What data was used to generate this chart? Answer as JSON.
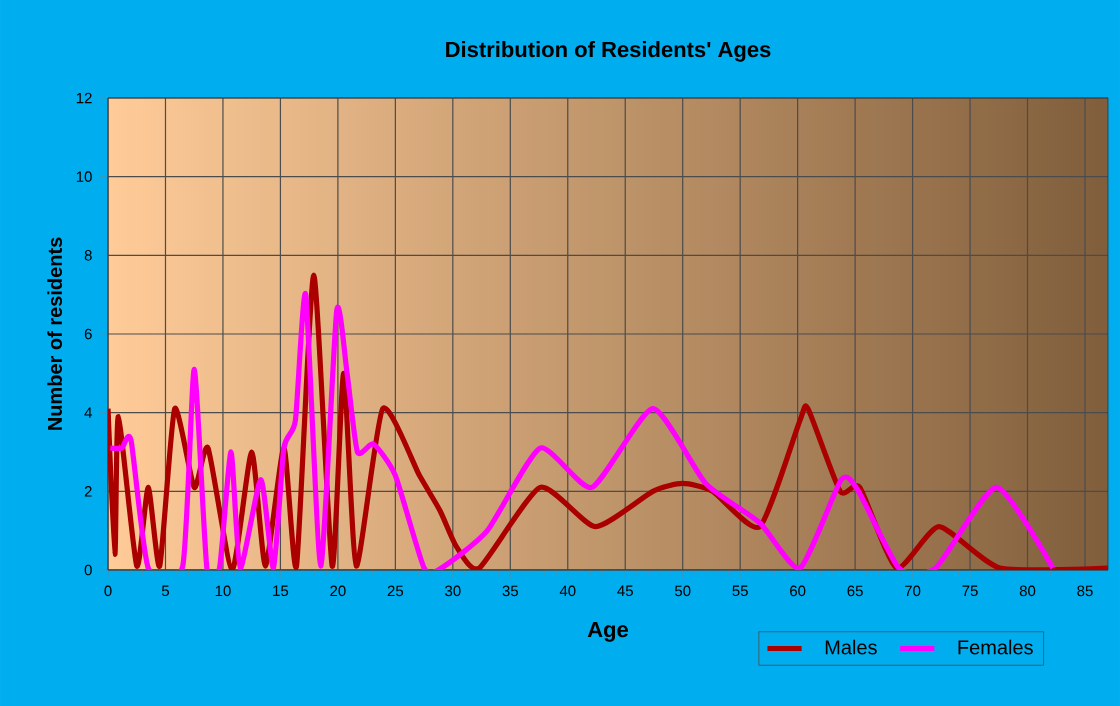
{
  "chart_data": {
    "type": "line",
    "title": "Distribution of Residents' Ages",
    "xlabel": "Age",
    "ylabel": "Number of residents",
    "xlim": [
      0,
      87
    ],
    "xticks": [
      0,
      5,
      10,
      15,
      20,
      25,
      30,
      35,
      40,
      45,
      50,
      55,
      60,
      65,
      70,
      75,
      80,
      85
    ],
    "ylim": [
      0,
      12
    ],
    "yticks": [
      0,
      2,
      4,
      6,
      8,
      10,
      12
    ],
    "grid": true,
    "legend": "bottom right",
    "marker": "none",
    "line_style": "solid",
    "series": [
      {
        "name": "Males",
        "color": "#aa0000",
        "x": [
          0,
          0.6,
          0.9,
          2.5,
          3.5,
          4.5,
          5.8,
          7.5,
          8.7,
          10.8,
          12.5,
          13.7,
          15.3,
          16.4,
          17.9,
          19.5,
          20.5,
          21.6,
          23.9,
          27.1,
          28.9,
          30.3,
          32.3,
          37.6,
          42.4,
          47.4,
          50,
          52.6,
          56.7,
          60.2,
          60.9,
          63.7,
          65.4,
          68.6,
          72.3,
          77.6,
          87
        ],
        "values": [
          4.1,
          0.4,
          3.9,
          0.1,
          2.1,
          0.1,
          4.1,
          2.1,
          3.1,
          0,
          3,
          0.1,
          3.1,
          0.1,
          7.5,
          0.1,
          5,
          0.1,
          4.1,
          2.4,
          1.5,
          0.6,
          0.05,
          2.1,
          1.1,
          2,
          2.2,
          2,
          1.1,
          3.8,
          4.1,
          2,
          2.1,
          0.05,
          1.1,
          0.05,
          0.05
        ]
      },
      {
        "name": "Females",
        "color": "#ff00ff",
        "x": [
          0.2,
          1.2,
          2,
          3.5,
          6.5,
          7.5,
          8.6,
          9.7,
          10.7,
          11.5,
          13.3,
          14.4,
          15.3,
          16.3,
          17.2,
          18.5,
          19.9,
          20.8,
          21.7,
          23.1,
          25,
          27.5,
          29,
          33,
          37.6,
          42.1,
          47.4,
          52,
          56.7,
          60.2,
          63.8,
          65.3,
          68.8,
          72,
          77.3,
          82.2
        ],
        "values": [
          3.1,
          3.1,
          3.3,
          0.05,
          0.1,
          5.1,
          0.05,
          0.05,
          3,
          0.05,
          2.3,
          0.05,
          3.1,
          3.8,
          7,
          0.1,
          6.6,
          5,
          3,
          3.2,
          2.4,
          0.05,
          0.05,
          1,
          3.1,
          2.1,
          4.1,
          2.2,
          1.2,
          0.05,
          2.3,
          2,
          0.05,
          0.05,
          2.1,
          0.05
        ]
      }
    ]
  }
}
